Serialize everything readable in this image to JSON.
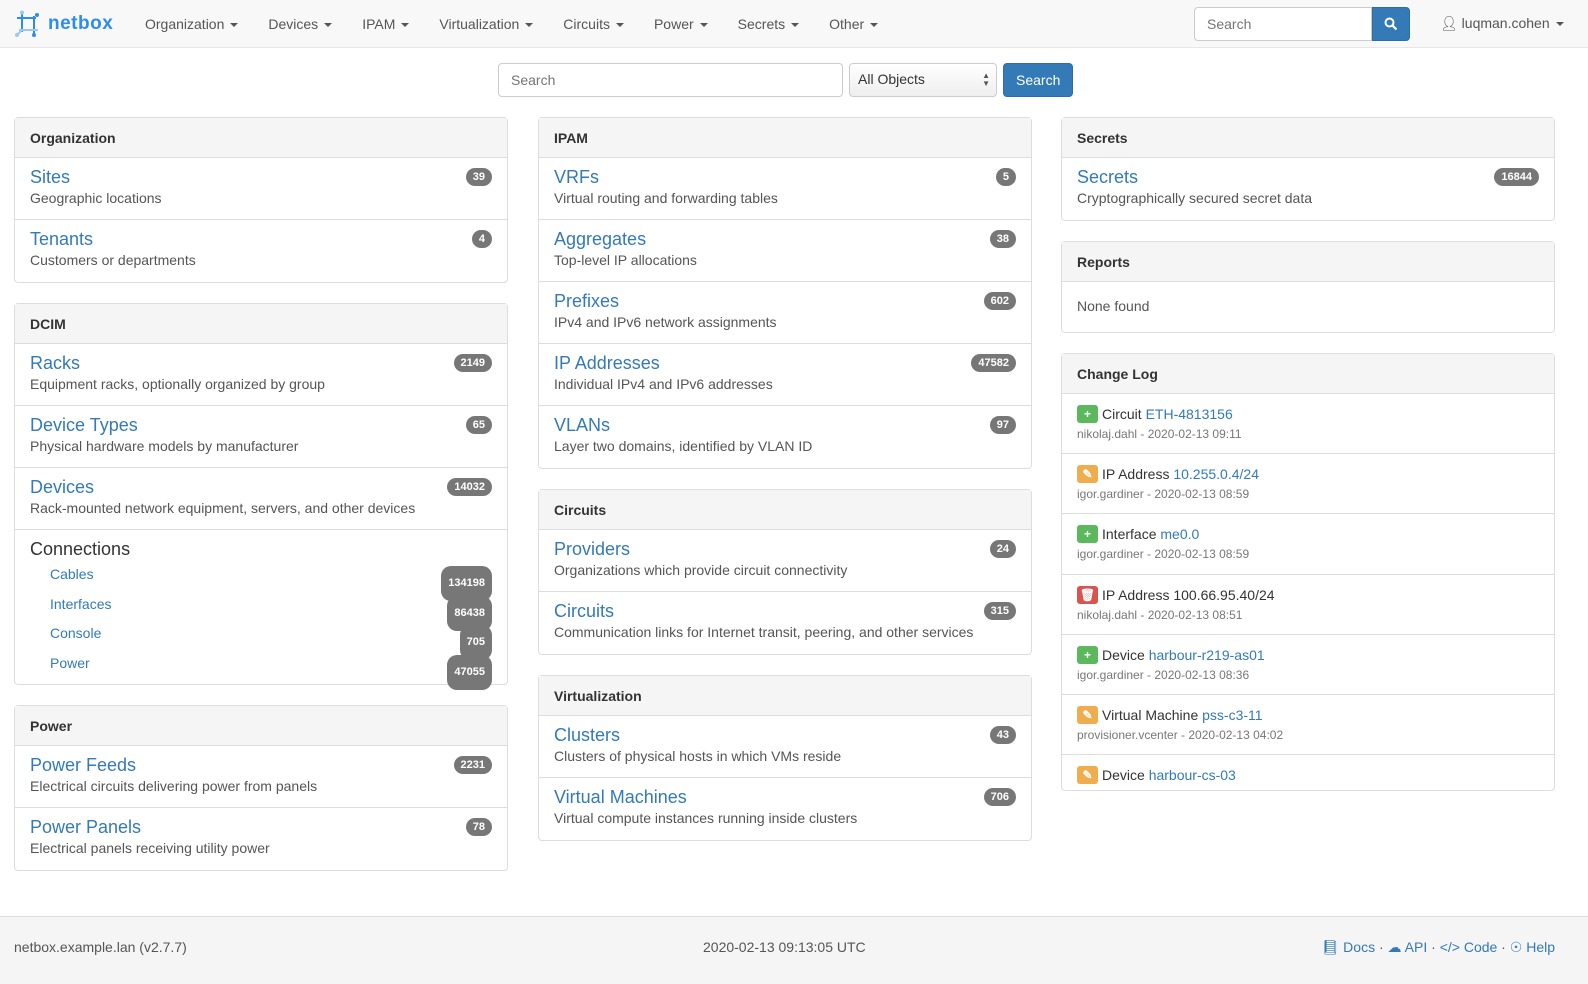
{
  "brand": "netbox",
  "nav": [
    "Organization",
    "Devices",
    "IPAM",
    "Virtualization",
    "Circuits",
    "Power",
    "Secrets",
    "Other"
  ],
  "nav_search_placeholder": "Search",
  "user": "luqman.cohen",
  "search": {
    "placeholder": "Search",
    "scope": "All Objects",
    "button": "Search"
  },
  "columns": [
    [
      {
        "title": "Organization",
        "items": [
          {
            "t": "Sites",
            "d": "Geographic locations",
            "c": "39"
          },
          {
            "t": "Tenants",
            "d": "Customers or departments",
            "c": "4"
          }
        ]
      },
      {
        "title": "DCIM",
        "items": [
          {
            "t": "Racks",
            "d": "Equipment racks, optionally organized by group",
            "c": "2149"
          },
          {
            "t": "Device Types",
            "d": "Physical hardware models by manufacturer",
            "c": "65"
          },
          {
            "t": "Devices",
            "d": "Rack-mounted network equipment, servers, and other devices",
            "c": "14032"
          }
        ],
        "connections": {
          "title": "Connections",
          "items": [
            {
              "t": "Cables",
              "c": "134198"
            },
            {
              "t": "Interfaces",
              "c": "86438"
            },
            {
              "t": "Console",
              "c": "705"
            },
            {
              "t": "Power",
              "c": "47055"
            }
          ]
        }
      },
      {
        "title": "Power",
        "items": [
          {
            "t": "Power Feeds",
            "d": "Electrical circuits delivering power from panels",
            "c": "2231"
          },
          {
            "t": "Power Panels",
            "d": "Electrical panels receiving utility power",
            "c": "78"
          }
        ]
      }
    ],
    [
      {
        "title": "IPAM",
        "items": [
          {
            "t": "VRFs",
            "d": "Virtual routing and forwarding tables",
            "c": "5"
          },
          {
            "t": "Aggregates",
            "d": "Top-level IP allocations",
            "c": "38"
          },
          {
            "t": "Prefixes",
            "d": "IPv4 and IPv6 network assignments",
            "c": "602"
          },
          {
            "t": "IP Addresses",
            "d": "Individual IPv4 and IPv6 addresses",
            "c": "47582"
          },
          {
            "t": "VLANs",
            "d": "Layer two domains, identified by VLAN ID",
            "c": "97"
          }
        ]
      },
      {
        "title": "Circuits",
        "items": [
          {
            "t": "Providers",
            "d": "Organizations which provide circuit connectivity",
            "c": "24"
          },
          {
            "t": "Circuits",
            "d": "Communication links for Internet transit, peering, and other services",
            "c": "315"
          }
        ]
      },
      {
        "title": "Virtualization",
        "items": [
          {
            "t": "Clusters",
            "d": "Clusters of physical hosts in which VMs reside",
            "c": "43"
          },
          {
            "t": "Virtual Machines",
            "d": "Virtual compute instances running inside clusters",
            "c": "706"
          }
        ]
      }
    ],
    [
      {
        "title": "Secrets",
        "items": [
          {
            "t": "Secrets",
            "d": "Cryptographically secured secret data",
            "c": "16844"
          }
        ]
      },
      {
        "title": "Reports",
        "none": "None found"
      },
      {
        "title": "Change Log",
        "changelog": [
          {
            "action": "create",
            "type": "Circuit",
            "obj": "ETH-4813156",
            "meta": "nikolaj.dahl - 2020-02-13 09:11"
          },
          {
            "action": "update",
            "type": "IP Address",
            "obj": "10.255.0.4/24",
            "meta": "igor.gardiner - 2020-02-13 08:59"
          },
          {
            "action": "create",
            "type": "Interface",
            "obj": "me0.0",
            "meta": "igor.gardiner - 2020-02-13 08:59"
          },
          {
            "action": "delete",
            "type": "IP Address",
            "obj": "100.66.95.40/24",
            "meta": "nikolaj.dahl - 2020-02-13 08:51"
          },
          {
            "action": "create",
            "type": "Device",
            "obj": "harbour-r219-as01",
            "meta": "igor.gardiner - 2020-02-13 08:36"
          },
          {
            "action": "update",
            "type": "Virtual Machine",
            "obj": "pss-c3-11",
            "meta": "provisioner.vcenter - 2020-02-13 04:02"
          },
          {
            "action": "update",
            "type": "Device",
            "obj": "harbour-cs-03",
            "meta": ""
          }
        ]
      }
    ]
  ],
  "action_colors": {
    "create": "#5cb85c",
    "update": "#f0ad4e",
    "delete": "#d9534f"
  },
  "footer": {
    "host": "netbox.example.lan (v2.7.7)",
    "time": "2020-02-13 09:13:05 UTC",
    "links": [
      "Docs",
      "API",
      "Code",
      "Help"
    ]
  }
}
